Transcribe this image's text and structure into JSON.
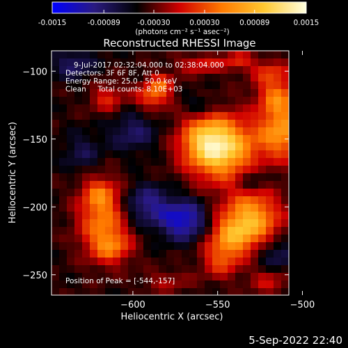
{
  "colorbar": {
    "ticks": [
      "-0.0015",
      "-0.00089",
      "-0.00030",
      "0.00030",
      "0.00089",
      "0.0015"
    ],
    "tick_values": [
      -0.0015,
      -0.00089,
      -0.0003,
      0.0003,
      0.00089,
      0.0015
    ],
    "range": [
      -0.0015,
      0.0015
    ],
    "units_label": "(photons cm⁻² s⁻¹ asec⁻²)",
    "colors": [
      "#0000ff",
      "#2a1a80",
      "#000000",
      "#d00000",
      "#ff7a00",
      "#ffc830",
      "#ffffe0"
    ]
  },
  "chart_data": {
    "type": "heatmap",
    "title": "Reconstructed RHESSI Image",
    "xlabel": "Heliocentric X (arcsec)",
    "ylabel": "Heliocentric Y (arcsec)",
    "xlim": [
      -648,
      -545
    ],
    "ylim": [
      -265,
      -85
    ],
    "xlim_note": "x axis spans approx -648 to -508 arcsec",
    "x_range": [
      -648,
      -508
    ],
    "x_ticks": [
      -600,
      -550,
      -500
    ],
    "x_tick_labels": [
      "−600",
      "−550",
      "−500"
    ],
    "y_ticks": [
      -100,
      -150,
      -200,
      -250
    ],
    "y_tick_labels": [
      "−100",
      "−150",
      "−200",
      "−250"
    ],
    "annotations": [
      "9-Jul-2017 02:32:04.000 to 02:38:04.000",
      "Detectors: 3F 6F 8F, Att 0",
      "Energy Range: 25.0 - 50.0 keV",
      "Clean     Total counts: 8.10E+03"
    ],
    "peak_label": "Position of Peak = [-544,-157]",
    "peak": [
      -544,
      -157
    ],
    "sources": [
      {
        "x": -548,
        "y": -157,
        "sx": 14,
        "sy": 16,
        "v": 0.0015
      },
      {
        "x": -558,
        "y": -150,
        "sx": 10,
        "sy": 12,
        "v": 0.0006
      },
      {
        "x": -530,
        "y": -208,
        "sx": 12,
        "sy": 14,
        "v": 0.00115
      },
      {
        "x": -542,
        "y": -222,
        "sx": 10,
        "sy": 10,
        "v": 0.0008
      },
      {
        "x": -548,
        "y": -240,
        "sx": 8,
        "sy": 9,
        "v": 0.0006
      },
      {
        "x": -618,
        "y": -210,
        "sx": 10,
        "sy": 18,
        "v": 0.0009
      },
      {
        "x": -620,
        "y": -190,
        "sx": 7,
        "sy": 8,
        "v": 0.0005
      },
      {
        "x": -612,
        "y": -230,
        "sx": 8,
        "sy": 8,
        "v": 0.0006
      },
      {
        "x": -588,
        "y": -118,
        "sx": 7,
        "sy": 7,
        "v": 0.0008
      },
      {
        "x": -583,
        "y": -108,
        "sx": 5,
        "sy": 5,
        "v": 0.0005
      },
      {
        "x": -615,
        "y": -120,
        "sx": 7,
        "sy": 8,
        "v": 0.0005
      },
      {
        "x": -512,
        "y": -145,
        "sx": 10,
        "sy": 14,
        "v": 0.00105
      },
      {
        "x": -515,
        "y": -118,
        "sx": 8,
        "sy": 10,
        "v": 0.0008
      },
      {
        "x": -520,
        "y": -100,
        "sx": 8,
        "sy": 6,
        "v": 0.0005
      },
      {
        "x": -560,
        "y": -95,
        "sx": 10,
        "sy": 5,
        "v": 0.0005
      },
      {
        "x": -538,
        "y": -92,
        "sx": 6,
        "sy": 5,
        "v": 0.0005
      },
      {
        "x": -580,
        "y": -255,
        "sx": 10,
        "sy": 6,
        "v": 0.0003
      },
      {
        "x": -520,
        "y": -255,
        "sx": 8,
        "sy": 7,
        "v": 0.0004
      },
      {
        "x": -592,
        "y": -198,
        "sx": 10,
        "sy": 10,
        "v": -0.0006
      },
      {
        "x": -570,
        "y": -210,
        "sx": 10,
        "sy": 10,
        "v": -0.0009
      },
      {
        "x": -600,
        "y": -145,
        "sx": 10,
        "sy": 10,
        "v": -0.00045
      },
      {
        "x": -530,
        "y": -180,
        "sx": 7,
        "sy": 6,
        "v": -0.0004
      },
      {
        "x": -560,
        "y": -125,
        "sx": 7,
        "sy": 5,
        "v": -0.00035
      },
      {
        "x": -635,
        "y": -95,
        "sx": 9,
        "sy": 8,
        "v": -0.00045
      },
      {
        "x": -630,
        "y": -160,
        "sx": 8,
        "sy": 10,
        "v": -0.00035
      },
      {
        "x": -515,
        "y": -235,
        "sx": 8,
        "sy": 8,
        "v": -0.00045
      }
    ]
  },
  "footer": {
    "date": "5-Sep-2022 22:40"
  }
}
